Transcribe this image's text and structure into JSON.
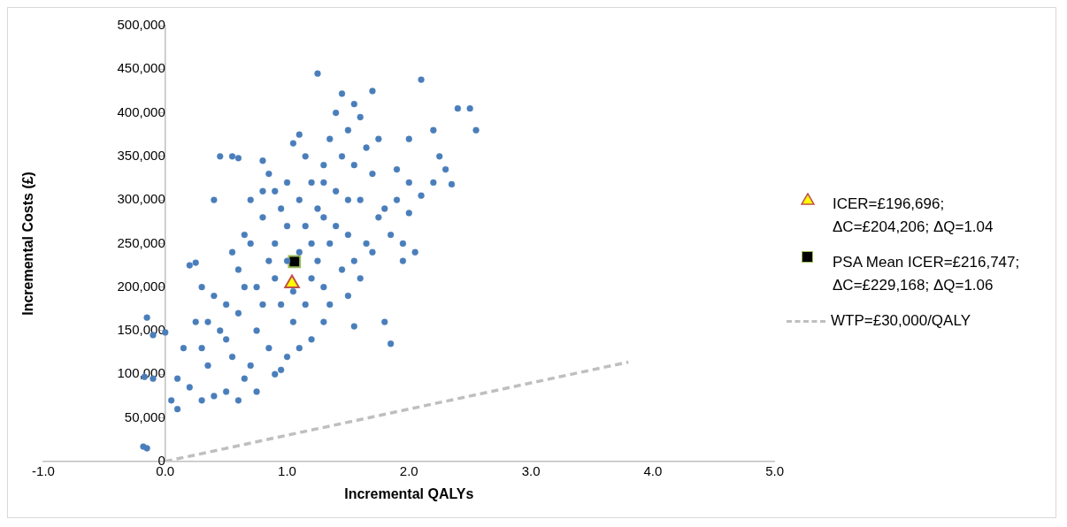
{
  "chart_data": {
    "type": "scatter",
    "xlabel": "Incremental QALYs",
    "ylabel": "Incremental Costs (£)",
    "legend": "right",
    "grid": false,
    "xlim": [
      -1,
      5
    ],
    "xticks": [
      {
        "value": -1,
        "label": "-1.0"
      },
      {
        "value": 0,
        "label": "0.0"
      },
      {
        "value": 1,
        "label": "1.0"
      },
      {
        "value": 2,
        "label": "2.0"
      },
      {
        "value": 3,
        "label": "3.0"
      },
      {
        "value": 4,
        "label": "4.0"
      },
      {
        "value": 5,
        "label": "5.0"
      }
    ],
    "ylim": [
      0,
      500000
    ],
    "yticks": [
      0,
      {
        "value": 50000,
        "label": "50,000"
      },
      {
        "value": 100000,
        "label": "100,000"
      },
      {
        "value": 150000,
        "label": "150,000"
      },
      {
        "value": 200000,
        "label": "200,000"
      },
      {
        "value": 250000,
        "label": "250,000"
      },
      {
        "value": 300000,
        "label": "300,000"
      },
      {
        "value": 350000,
        "label": "350,000"
      },
      {
        "value": 400000,
        "label": "400,000"
      },
      {
        "value": 450000,
        "label": "450,000"
      },
      {
        "value": 500000,
        "label": "500,000"
      }
    ],
    "series": [
      {
        "marker": "circle",
        "color": "#4a7ebb",
        "x": [
          -0.15,
          -0.17,
          -0.1,
          -0.18,
          -0.15,
          -0.1,
          0.0,
          0.05,
          0.1,
          0.1,
          0.2,
          0.25,
          0.45,
          0.55,
          0.6,
          0.4,
          0.8,
          0.85,
          1.1,
          1.05,
          1.25,
          1.45,
          1.55,
          1.7,
          1.6,
          1.4,
          2.1,
          2.4,
          2.5,
          2.55,
          2.3,
          2.25,
          2.35,
          2.2,
          2.1,
          2.0,
          2.2,
          1.85,
          1.8,
          1.55,
          2.05,
          1.95,
          1.2,
          0.95,
          1.0,
          0.75,
          0.6,
          0.5,
          0.3,
          0.4,
          0.2,
          0.15,
          0.3,
          0.35,
          0.5,
          0.5,
          0.6,
          0.7,
          0.65,
          0.75,
          0.8,
          0.9,
          0.9,
          0.95,
          1.0,
          1.1,
          1.2,
          1.3,
          1.4,
          1.5,
          1.6,
          1.7,
          1.8,
          1.9,
          1.65,
          1.45,
          1.3,
          1.15,
          1.05,
          0.85,
          0.7,
          0.55,
          0.45,
          0.55,
          0.65,
          0.8,
          0.85,
          1.0,
          1.1,
          1.25,
          1.35,
          1.4,
          1.5,
          1.55,
          1.45,
          1.3,
          1.2,
          1.35,
          1.5,
          1.75,
          1.65,
          1.9,
          2.0,
          1.75,
          1.6,
          1.5,
          1.3,
          1.35,
          1.05,
          0.95,
          0.75,
          0.6,
          0.4,
          0.3,
          0.25,
          0.35,
          0.65,
          0.9,
          1.1,
          1.2,
          1.25,
          1.15,
          0.9,
          0.7,
          0.8,
          1.0,
          1.15,
          1.3,
          1.55,
          1.7,
          1.85,
          2.0,
          1.95
        ],
        "values": [
          165000,
          97000,
          95000,
          17000,
          15000,
          145000,
          148000,
          70000,
          60000,
          95000,
          225000,
          228000,
          350000,
          350000,
          348000,
          300000,
          345000,
          330000,
          375000,
          365000,
          445000,
          422000,
          410000,
          425000,
          395000,
          400000,
          438000,
          405000,
          405000,
          380000,
          335000,
          350000,
          318000,
          320000,
          305000,
          370000,
          380000,
          135000,
          160000,
          155000,
          240000,
          250000,
          140000,
          105000,
          120000,
          80000,
          70000,
          80000,
          70000,
          75000,
          85000,
          130000,
          130000,
          160000,
          140000,
          180000,
          220000,
          250000,
          200000,
          150000,
          180000,
          210000,
          250000,
          290000,
          270000,
          300000,
          250000,
          280000,
          310000,
          260000,
          300000,
          330000,
          290000,
          300000,
          250000,
          220000,
          200000,
          180000,
          160000,
          130000,
          110000,
          120000,
          150000,
          240000,
          260000,
          280000,
          230000,
          230000,
          240000,
          230000,
          250000,
          270000,
          300000,
          340000,
          350000,
          340000,
          320000,
          370000,
          380000,
          370000,
          360000,
          335000,
          320000,
          280000,
          210000,
          190000,
          160000,
          180000,
          195000,
          180000,
          200000,
          170000,
          190000,
          200000,
          160000,
          110000,
          95000,
          100000,
          130000,
          210000,
          290000,
          270000,
          310000,
          300000,
          310000,
          320000,
          350000,
          320000,
          230000,
          240000,
          260000,
          285000,
          230000
        ]
      },
      {
        "type": "scatter",
        "name": "ICER=£196,696; ΔC=£204,206; ΔQ=1.04",
        "marker": "triangle",
        "color": "#ffff00",
        "x": [
          1.04
        ],
        "values": [
          204206
        ]
      },
      {
        "type": "scatter",
        "name": "PSA Mean ICER=£216,747; ΔC=£229,168; ΔQ=1.06",
        "marker": "square",
        "color": "#000000",
        "x": [
          1.06
        ],
        "values": [
          229168
        ]
      },
      {
        "type": "line",
        "name": "WTP=£30,000/QALY",
        "marker": "none",
        "line_style": "dashed",
        "color": "#bfbfbf",
        "x": [
          0,
          3.8
        ],
        "values": [
          0,
          114000
        ]
      }
    ]
  }
}
